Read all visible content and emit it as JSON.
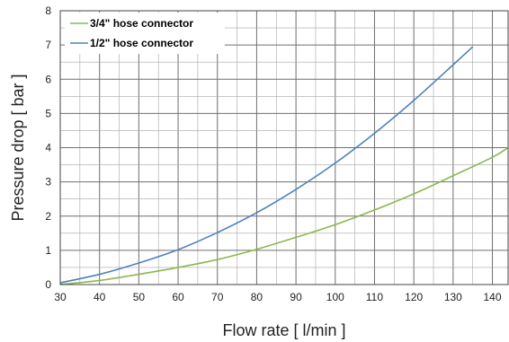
{
  "chart_data": {
    "type": "line",
    "xlabel": "Flow rate [ l/min ]",
    "ylabel": "Pressure drop [ bar ]",
    "xlim": [
      30,
      144
    ],
    "ylim": [
      0,
      8
    ],
    "x_ticks": [
      30,
      40,
      50,
      60,
      70,
      80,
      90,
      100,
      110,
      120,
      130,
      140
    ],
    "y_ticks": [
      0,
      1,
      2,
      3,
      4,
      5,
      6,
      7,
      8
    ],
    "grid": true,
    "legend_position": "top-left",
    "series": [
      {
        "name": "3/4\" hose connector",
        "color": "#8cb84f",
        "x": [
          30,
          40,
          50,
          60,
          70,
          80,
          90,
          100,
          110,
          120,
          130,
          140,
          144
        ],
        "y": [
          0.0,
          0.12,
          0.3,
          0.5,
          0.73,
          1.03,
          1.38,
          1.75,
          2.18,
          2.65,
          3.18,
          3.72,
          4.0
        ]
      },
      {
        "name": "1/2\" hose connector",
        "color": "#4e81bd",
        "x": [
          30,
          40,
          50,
          60,
          70,
          80,
          90,
          100,
          110,
          120,
          130,
          135
        ],
        "y": [
          0.05,
          0.3,
          0.63,
          1.02,
          1.52,
          2.1,
          2.78,
          3.55,
          4.42,
          5.38,
          6.42,
          6.95
        ]
      }
    ]
  }
}
